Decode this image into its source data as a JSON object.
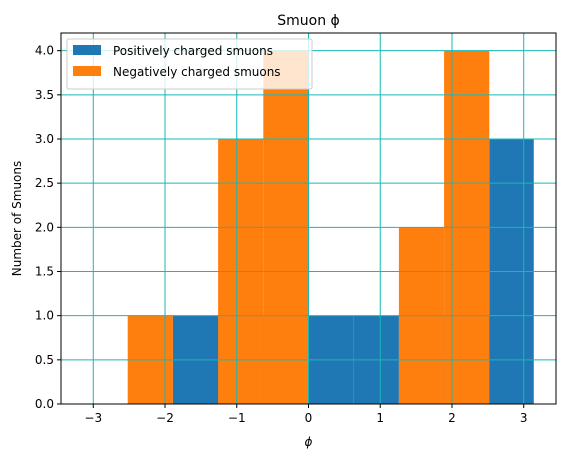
{
  "chart_data": {
    "type": "bar",
    "title": "Smuon ϕ",
    "xlabel": "ϕ",
    "ylabel": "Number of Smuons",
    "xlim": [
      -3.45,
      3.45
    ],
    "ylim": [
      0,
      4.2
    ],
    "xticks": [
      -3,
      -2,
      -1,
      0,
      1,
      2,
      3
    ],
    "xtick_labels": [
      "−3",
      "−2",
      "−1",
      "0",
      "1",
      "2",
      "3"
    ],
    "yticks": [
      0,
      0.5,
      1,
      1.5,
      2,
      2.5,
      3,
      3.5,
      4
    ],
    "ytick_labels": [
      "0.0",
      "0.5",
      "1.0",
      "1.5",
      "2.0",
      "2.5",
      "3.0",
      "3.5",
      "4.0"
    ],
    "grid": true,
    "legend_position": "upper-left",
    "series": [
      {
        "name": "Positively charged smuons",
        "color": "#1f77b4",
        "bins": [
          {
            "x0": -1.89,
            "x1": -1.26,
            "value": 1
          },
          {
            "x0": -1.26,
            "x1": -0.63,
            "value": 1
          },
          {
            "x0": -0.63,
            "x1": 0.0,
            "value": 1
          },
          {
            "x0": 0.0,
            "x1": 0.63,
            "value": 1
          },
          {
            "x0": 0.63,
            "x1": 1.26,
            "value": 1
          },
          {
            "x0": 1.26,
            "x1": 1.89,
            "value": 1
          },
          {
            "x0": 1.89,
            "x1": 2.52,
            "value": 1
          },
          {
            "x0": 2.52,
            "x1": 3.14,
            "value": 3
          }
        ]
      },
      {
        "name": "Negatively charged smuons",
        "color": "#ff7f0e",
        "bins": [
          {
            "x0": -2.52,
            "x1": -1.89,
            "value": 1
          },
          {
            "x0": -1.26,
            "x1": -0.63,
            "value": 3
          },
          {
            "x0": -0.63,
            "x1": 0.0,
            "value": 4
          },
          {
            "x0": 1.26,
            "x1": 1.89,
            "value": 2
          },
          {
            "x0": 1.89,
            "x1": 2.52,
            "value": 4
          }
        ]
      }
    ]
  }
}
